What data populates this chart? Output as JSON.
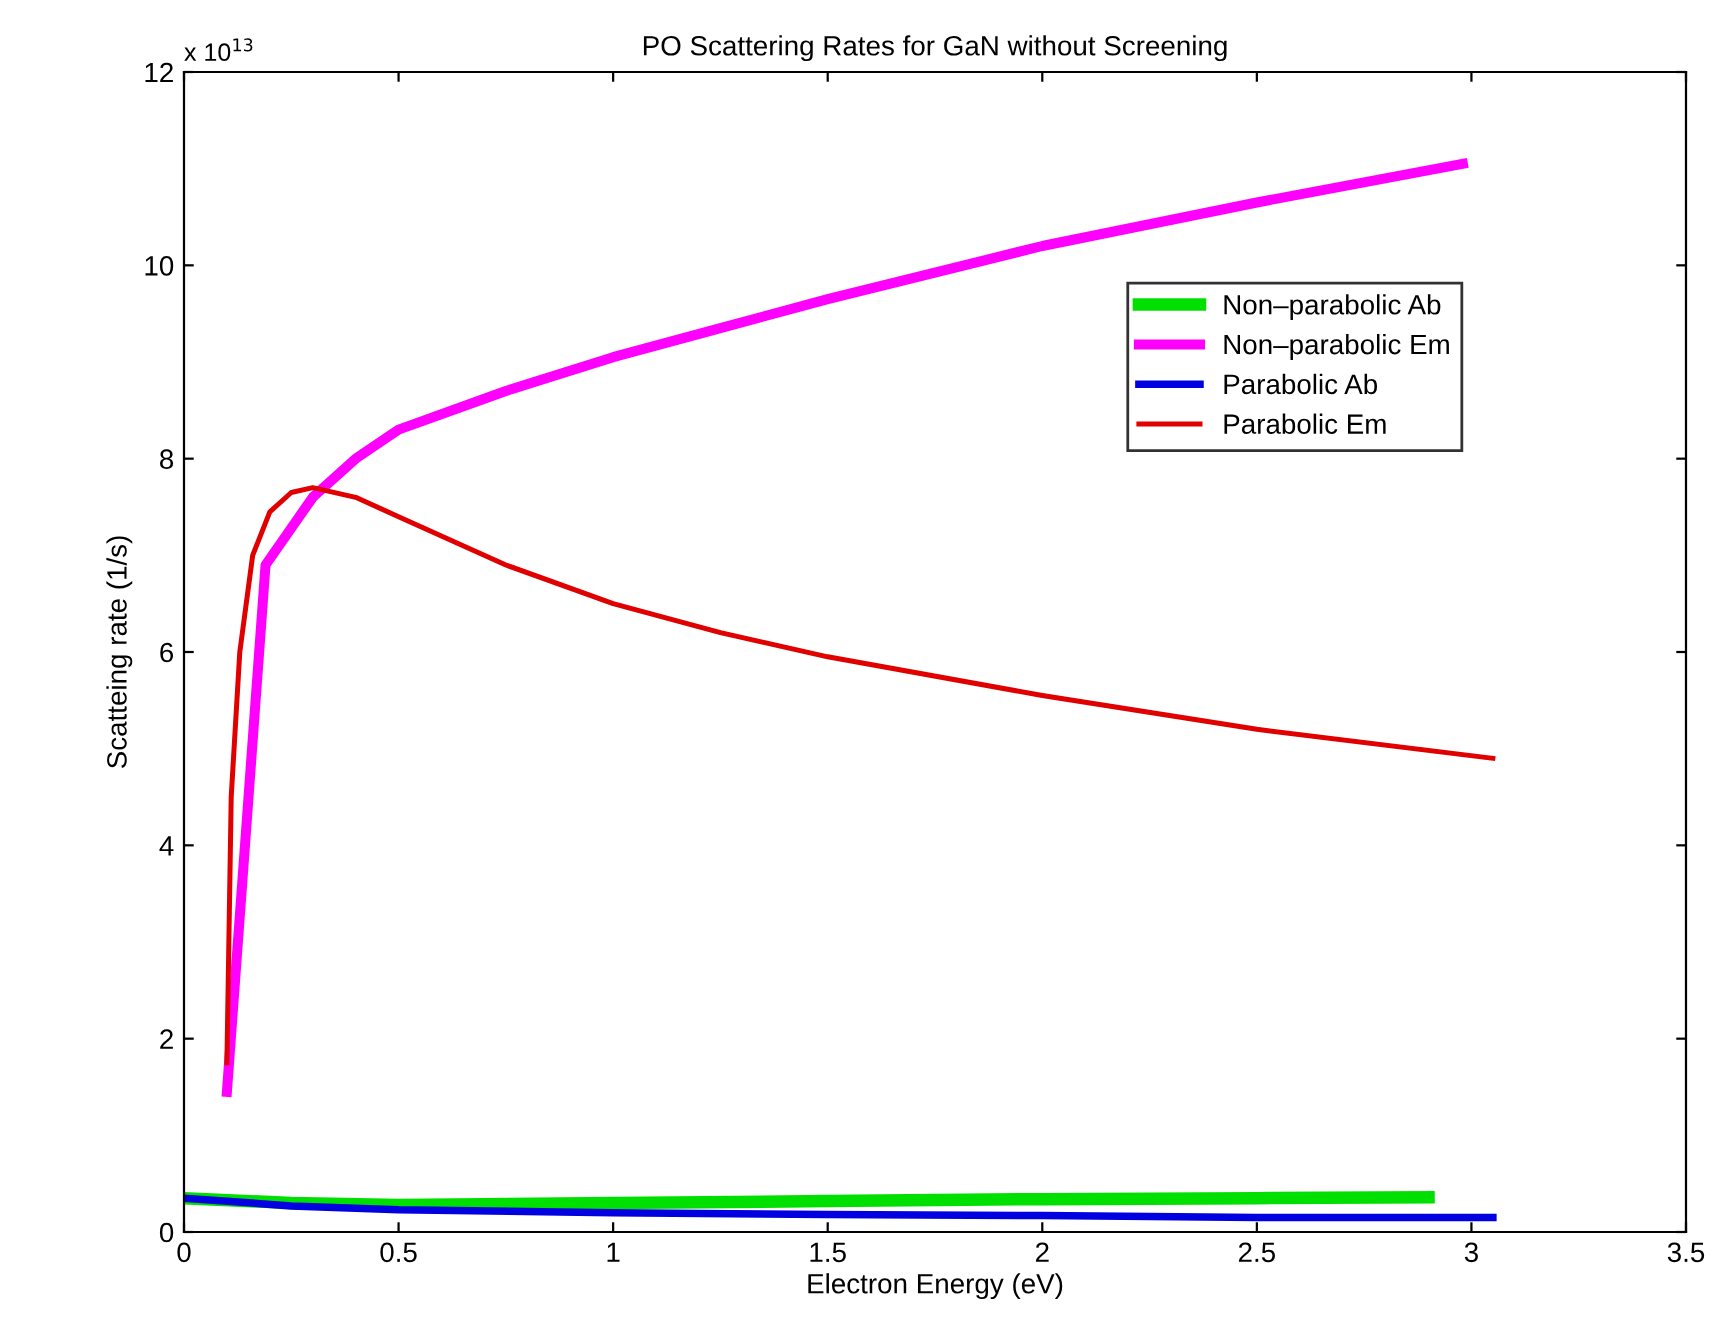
{
  "chart_data": {
    "type": "line",
    "title": "PO Scattering Rates for GaN without Screening",
    "xlabel": "Electron Energy (eV)",
    "ylabel": "Scatteing rate (1/s)",
    "annotations": [
      "x 10$^{13}$"
    ],
    "series": [
      {
        "name": "Non–parabolic Ab",
        "color": "#00e000",
        "x": [
          0,
          0.25,
          0.5,
          1.0,
          1.5,
          2.0,
          2.5,
          2.9
        ],
        "values": [
          0.35,
          0.3,
          0.28,
          0.3,
          0.32,
          0.34,
          0.35,
          0.36
        ]
      },
      {
        "name": "Non–parabolic Em",
        "color": "#ff00ff",
        "x": [
          0.1,
          0.19,
          0.3,
          0.4,
          0.5,
          0.75,
          1.0,
          1.25,
          1.5,
          2.0,
          2.5,
          2.98
        ],
        "values": [
          1.45,
          6.9,
          7.6,
          8.0,
          8.3,
          8.7,
          9.05,
          9.35,
          9.65,
          10.2,
          10.65,
          11.05
        ]
      },
      {
        "name": "Parabolic Ab",
        "color": "#0000e0",
        "x": [
          0,
          0.25,
          0.5,
          1.0,
          1.5,
          2.0,
          2.5,
          3.05
        ],
        "values": [
          0.35,
          0.27,
          0.23,
          0.2,
          0.18,
          0.17,
          0.15,
          0.15
        ]
      },
      {
        "name": "Parabolic Em",
        "color": "#e00000",
        "x": [
          0.1,
          0.11,
          0.13,
          0.16,
          0.2,
          0.25,
          0.3,
          0.4,
          0.5,
          0.75,
          1.0,
          1.25,
          1.5,
          2.0,
          2.5,
          3.05
        ],
        "values": [
          1.75,
          4.5,
          6.0,
          7.0,
          7.45,
          7.65,
          7.7,
          7.6,
          7.4,
          6.9,
          6.5,
          6.2,
          5.95,
          5.55,
          5.2,
          4.9
        ]
      }
    ],
    "xlim": [
      0,
      3.5
    ],
    "xticks": [
      0,
      0.5,
      1,
      1.5,
      2,
      2.5,
      3,
      3.5
    ],
    "ylim": [
      0,
      12
    ],
    "yticks": [
      0,
      2,
      4,
      6,
      8,
      10,
      12
    ],
    "grid": false,
    "legend": "top right"
  }
}
